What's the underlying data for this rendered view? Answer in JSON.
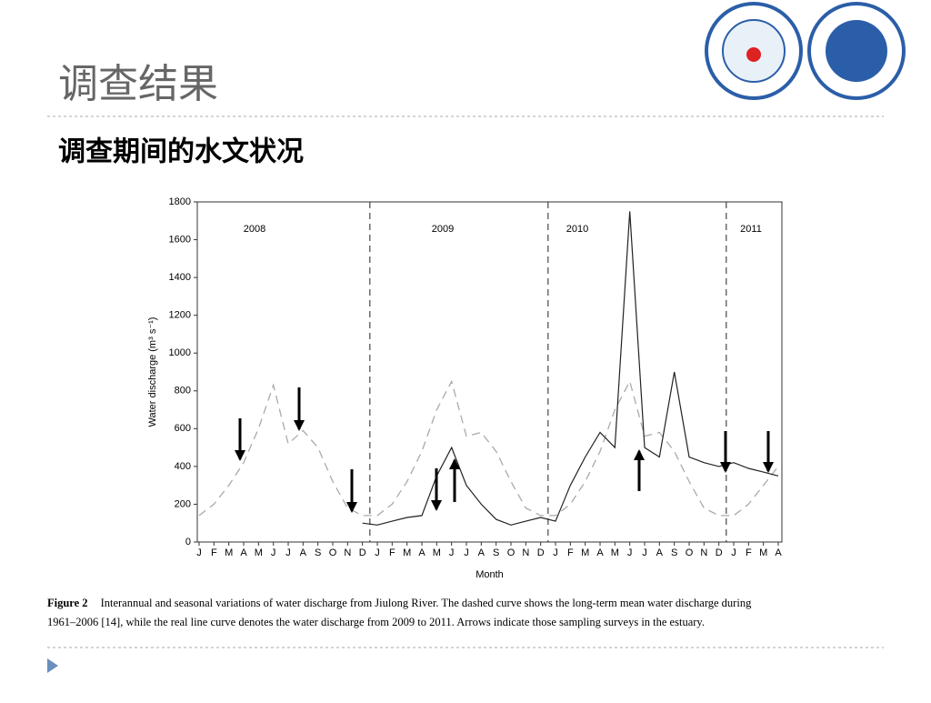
{
  "slide": {
    "title": "调查结果",
    "subtitle": "调查期间的水文状况",
    "caption": {
      "label": "Figure 2",
      "line1": "Interannual and seasonal variations of water discharge from Jiulong River. The dashed curve shows the long-term mean water discharge during",
      "line2": "1961–2006 [14], while the real line curve denotes the water discharge from 2009 to 2011. Arrows indicate those sampling surveys in the estuary."
    }
  },
  "chart_data": {
    "type": "line",
    "xlabel": "Month",
    "ylabel": "Water discharge (m³ s⁻¹)",
    "annotations": [
      "2008",
      "2009",
      "2010",
      "2011"
    ],
    "categories": [
      "J",
      "F",
      "M",
      "A",
      "M",
      "J",
      "J",
      "A",
      "S",
      "O",
      "N",
      "D",
      "J",
      "F",
      "M",
      "A",
      "M",
      "J",
      "J",
      "A",
      "S",
      "O",
      "N",
      "D",
      "J",
      "F",
      "M",
      "A",
      "M",
      "J",
      "J",
      "A",
      "S",
      "O",
      "N",
      "D",
      "J",
      "F",
      "M",
      "A"
    ],
    "series": [
      {
        "name": "Long-term mean 1961–2006",
        "color": "#aaaaaa",
        "dashed": true,
        "values": [
          140,
          200,
          300,
          420,
          600,
          830,
          520,
          590,
          500,
          320,
          180,
          140,
          140,
          200,
          320,
          480,
          700,
          850,
          560,
          580,
          480,
          320,
          180,
          140,
          140,
          200,
          320,
          480,
          700,
          850,
          560,
          580,
          480,
          320,
          180,
          140,
          140,
          200,
          300,
          400
        ]
      },
      {
        "name": "Water discharge 2009–2011",
        "color": "#222222",
        "dashed": false,
        "values": [
          null,
          null,
          null,
          null,
          null,
          null,
          null,
          null,
          null,
          null,
          null,
          100,
          90,
          110,
          130,
          140,
          350,
          500,
          300,
          200,
          120,
          90,
          110,
          130,
          110,
          300,
          450,
          580,
          500,
          1750,
          500,
          450,
          900,
          450,
          420,
          400,
          420,
          390,
          370,
          350
        ]
      }
    ],
    "ylim": [
      0,
      1800
    ],
    "yticks": [
      0,
      200,
      400,
      600,
      800,
      1000,
      1200,
      1400,
      1600,
      1800
    ],
    "grid": false
  }
}
